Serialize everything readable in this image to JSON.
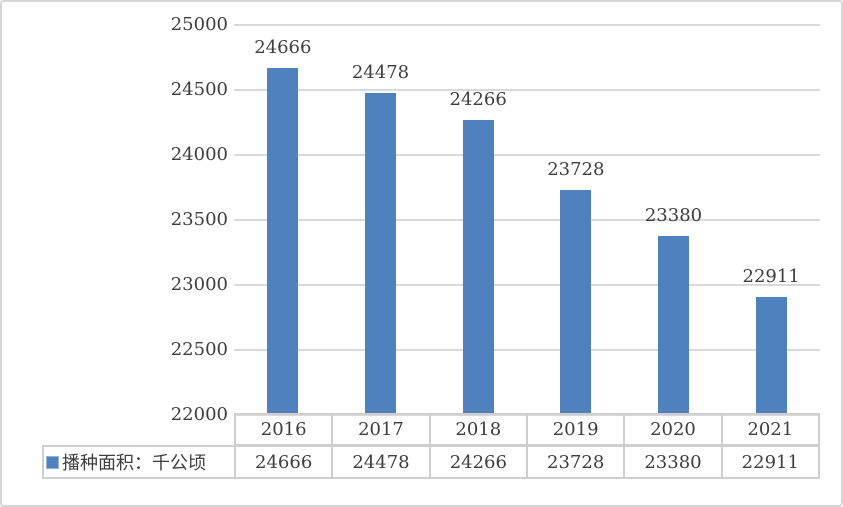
{
  "chart_data": {
    "type": "bar",
    "title": "",
    "series_label": "播种面积：千公顷",
    "categories": [
      "2016",
      "2017",
      "2018",
      "2019",
      "2020",
      "2021"
    ],
    "values": [
      24666,
      24478,
      24266,
      23728,
      23380,
      22911
    ],
    "ylim": [
      22000,
      25000
    ],
    "yticks": [
      25000,
      24500,
      24000,
      23500,
      23000,
      22500,
      22000
    ],
    "show_data_labels": true,
    "data_table_shown": true,
    "legend_position": "bottom-left",
    "grid": true,
    "colors": {
      "bar": "#4e81bd",
      "gridline": "#d9d9d9",
      "table_border": "#cfcfcf",
      "text": "#3e3e3e",
      "legend_swatch_border": "#95b3d7"
    }
  }
}
